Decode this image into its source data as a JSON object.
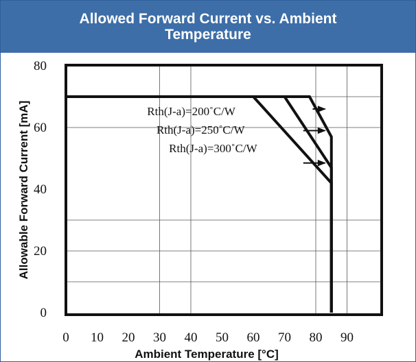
{
  "title": "Allowed Forward Current vs. Ambient Temperature",
  "chart_data": {
    "type": "line",
    "title": "Allowed Forward Current vs. Ambient Temperature",
    "xlabel": "Ambient Temperature [°C]",
    "ylabel": "Allowable Forward Current [mA]",
    "xlim": [
      0,
      100
    ],
    "ylim": [
      0,
      80
    ],
    "x_ticks": [
      0,
      10,
      20,
      30,
      40,
      50,
      60,
      70,
      80,
      90
    ],
    "y_ticks": [
      0,
      20,
      40,
      60,
      80
    ],
    "grid": true,
    "legend": "none",
    "series": [
      {
        "name": "Rth(J-a)=200°C/W",
        "x": [
          0,
          78,
          85,
          85
        ],
        "y": [
          70,
          70,
          57,
          0
        ]
      },
      {
        "name": "Rth(J-a)=250°C/W",
        "x": [
          0,
          70,
          85,
          85
        ],
        "y": [
          70,
          70,
          47,
          0
        ]
      },
      {
        "name": "Rth(J-a)=300°C/W",
        "x": [
          0,
          60,
          85,
          85
        ],
        "y": [
          70,
          70,
          42,
          0
        ]
      }
    ],
    "annotations": [
      {
        "text": "Rth(J-a)=200˚C/W",
        "x": 26,
        "y": 64
      },
      {
        "text": "Rth(J-a)=250˚C/W",
        "x": 29,
        "y": 58
      },
      {
        "text": "Rth(J-a)=300˚C/W",
        "x": 33,
        "y": 52
      }
    ],
    "arrows": [
      {
        "from": [
          79,
          66
        ],
        "to": [
          83,
          66
        ]
      },
      {
        "from": [
          76,
          59
        ],
        "to": [
          83,
          59
        ]
      },
      {
        "from": [
          76,
          48.5
        ],
        "to": [
          83,
          48.5
        ]
      }
    ]
  }
}
